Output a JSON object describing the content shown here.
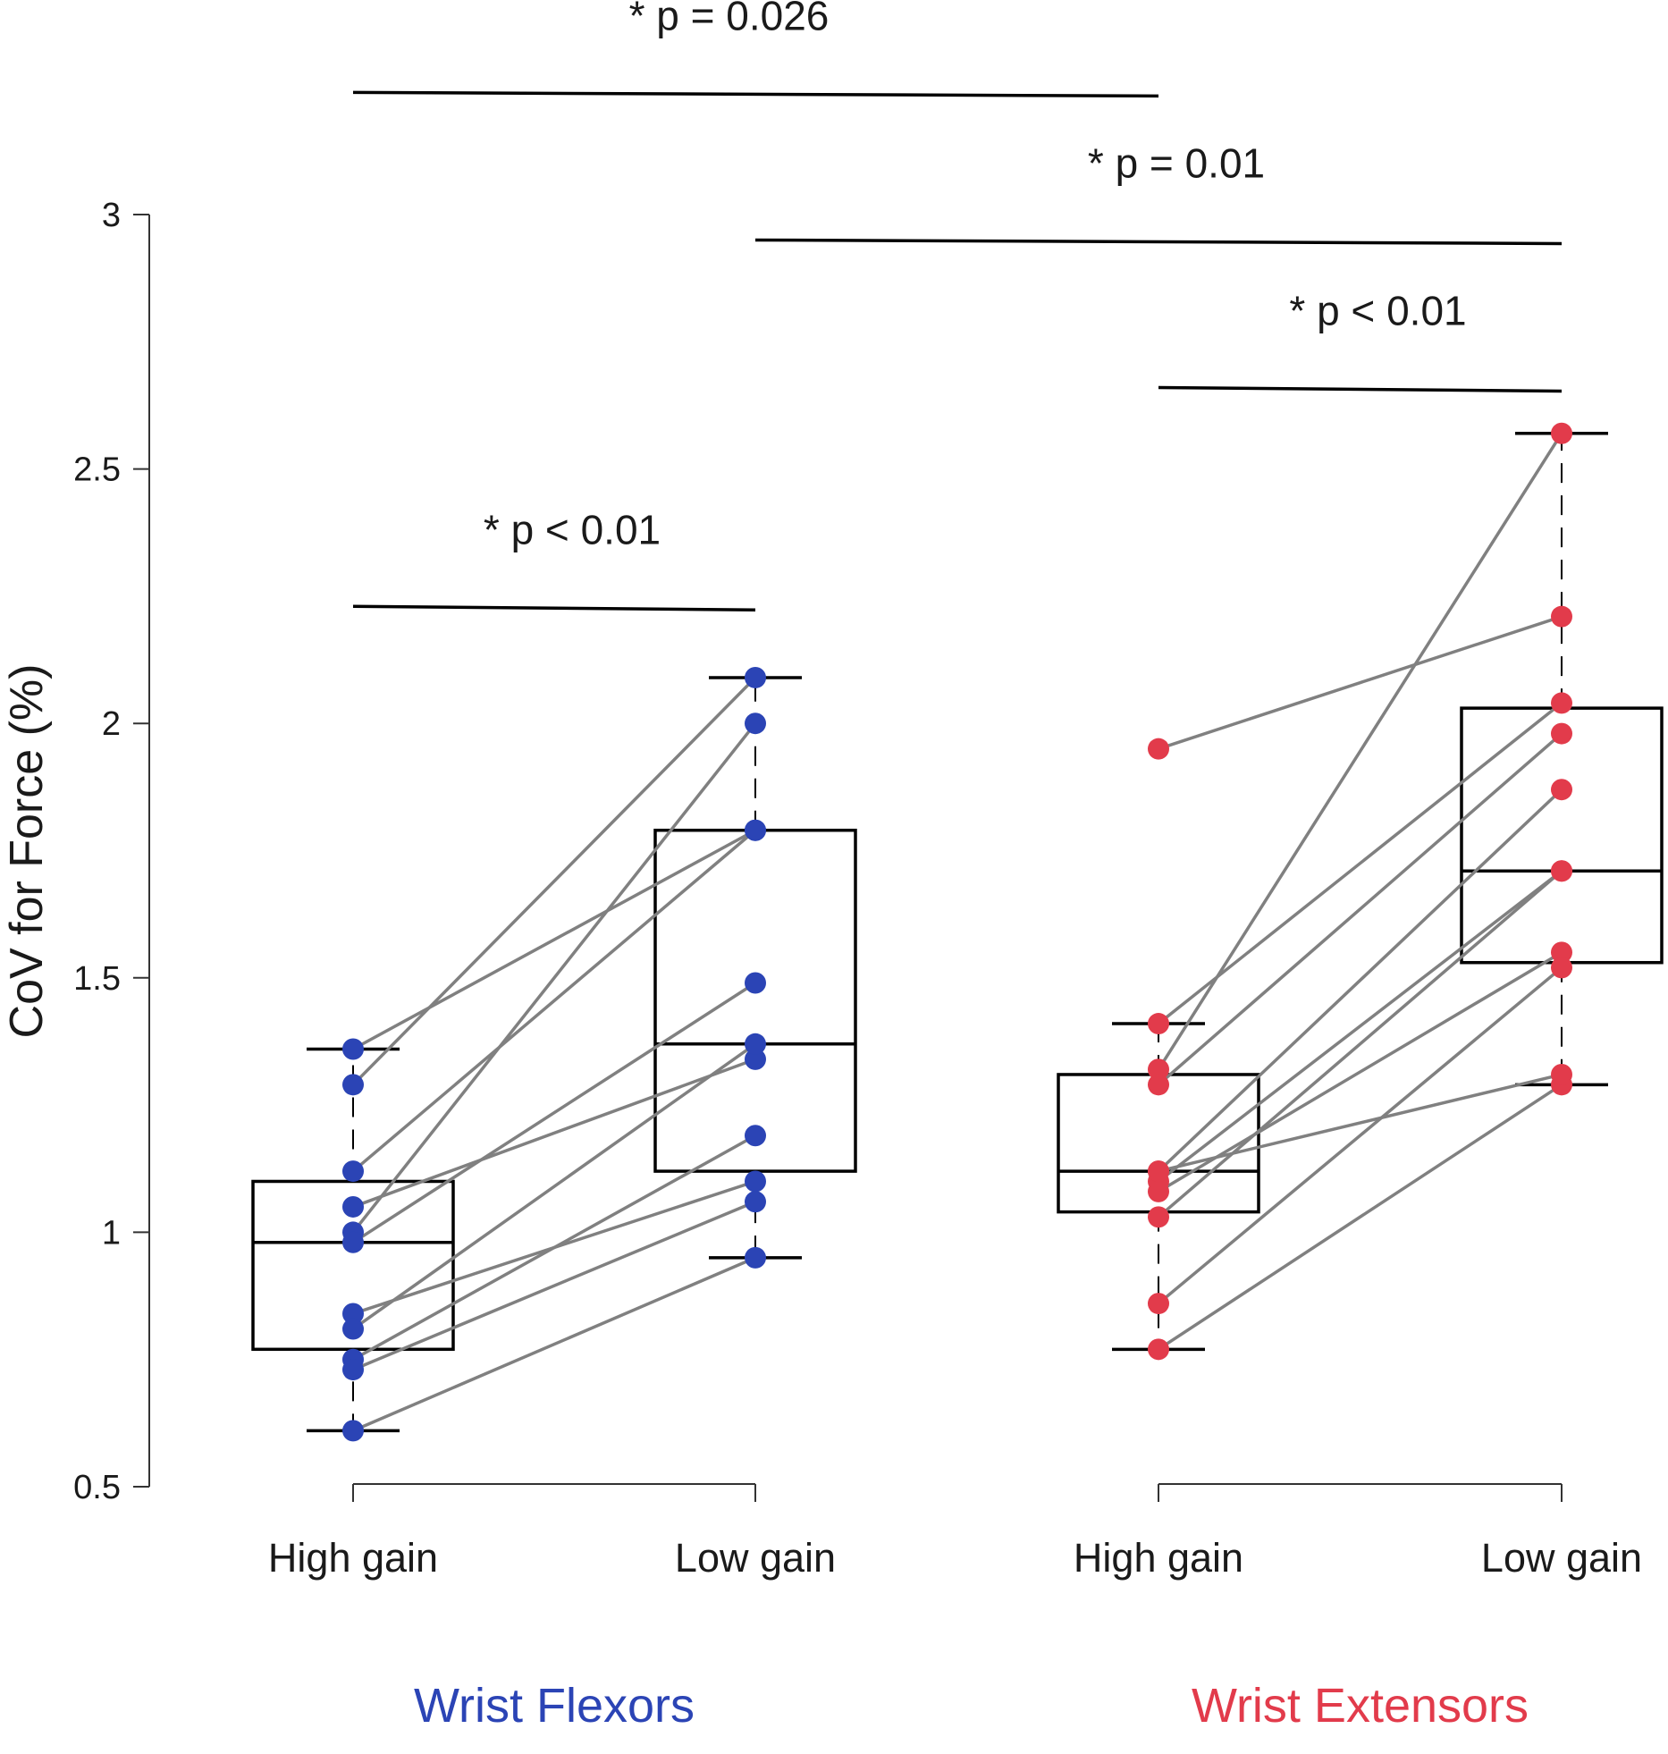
{
  "chart_data": {
    "type": "box",
    "ylabel": "CoV for Force (%)",
    "ylim": [
      0.5,
      3.0
    ],
    "yticks": [
      {
        "value": 0.5,
        "label": "0.5"
      },
      {
        "value": 1.0,
        "label": "1"
      },
      {
        "value": 1.5,
        "label": "1.5"
      },
      {
        "value": 2.0,
        "label": "2"
      },
      {
        "value": 2.5,
        "label": "2.5"
      },
      {
        "value": 3.0,
        "label": "3"
      }
    ],
    "grid": false,
    "colors": {
      "flexors": "#2B44B5",
      "extensors": "#E23B4B",
      "lines": "#808080",
      "box": "#000000"
    },
    "groups": [
      {
        "name": "Wrist Flexors",
        "color": "#2B44B5",
        "conditions": [
          {
            "label": "High gain",
            "box": {
              "whisker_low": 0.61,
              "q1": 0.77,
              "median": 0.98,
              "q3": 1.1,
              "whisker_high": 1.36
            }
          },
          {
            "label": "Low gain",
            "box": {
              "whisker_low": 0.95,
              "q1": 1.12,
              "median": 1.37,
              "q3": 1.79,
              "whisker_high": 2.09
            }
          }
        ],
        "pairs": [
          [
            1.36,
            1.79
          ],
          [
            1.29,
            2.09
          ],
          [
            1.12,
            1.79
          ],
          [
            1.05,
            1.34
          ],
          [
            1.0,
            2.0
          ],
          [
            0.98,
            1.49
          ],
          [
            0.84,
            1.1
          ],
          [
            0.81,
            1.37
          ],
          [
            0.75,
            1.19
          ],
          [
            0.73,
            1.06
          ],
          [
            0.61,
            0.95
          ]
        ]
      },
      {
        "name": "Wrist Extensors",
        "color": "#E23B4B",
        "conditions": [
          {
            "label": "High gain",
            "box": {
              "whisker_low": 0.77,
              "q1": 1.04,
              "median": 1.12,
              "q3": 1.31,
              "whisker_high": 1.41
            }
          },
          {
            "label": "Low gain",
            "box": {
              "whisker_low": 1.29,
              "q1": 1.53,
              "median": 1.71,
              "q3": 2.03,
              "whisker_high": 2.57
            }
          }
        ],
        "pairs": [
          [
            1.95,
            2.21
          ],
          [
            1.41,
            2.04
          ],
          [
            1.32,
            2.57
          ],
          [
            1.29,
            1.98
          ],
          [
            1.12,
            1.87
          ],
          [
            1.1,
            1.71
          ],
          [
            1.08,
            1.55
          ],
          [
            1.03,
            1.71
          ],
          [
            0.86,
            1.52
          ],
          [
            0.77,
            1.29
          ],
          [
            1.12,
            1.31
          ]
        ]
      }
    ],
    "annotations": [
      {
        "text": "* p < 0.01",
        "from": [
          0,
          0
        ],
        "to": [
          0,
          1
        ],
        "y": 2.23
      },
      {
        "text": "* p < 0.01",
        "from": [
          1,
          0
        ],
        "to": [
          1,
          1
        ],
        "y": 2.66
      },
      {
        "text": "* p = 0.01",
        "from": [
          0,
          1
        ],
        "to": [
          1,
          1
        ],
        "y": 2.95
      },
      {
        "text": "* p = 0.026",
        "from": [
          0,
          0
        ],
        "to": [
          1,
          0
        ],
        "y": 3.24
      }
    ]
  }
}
